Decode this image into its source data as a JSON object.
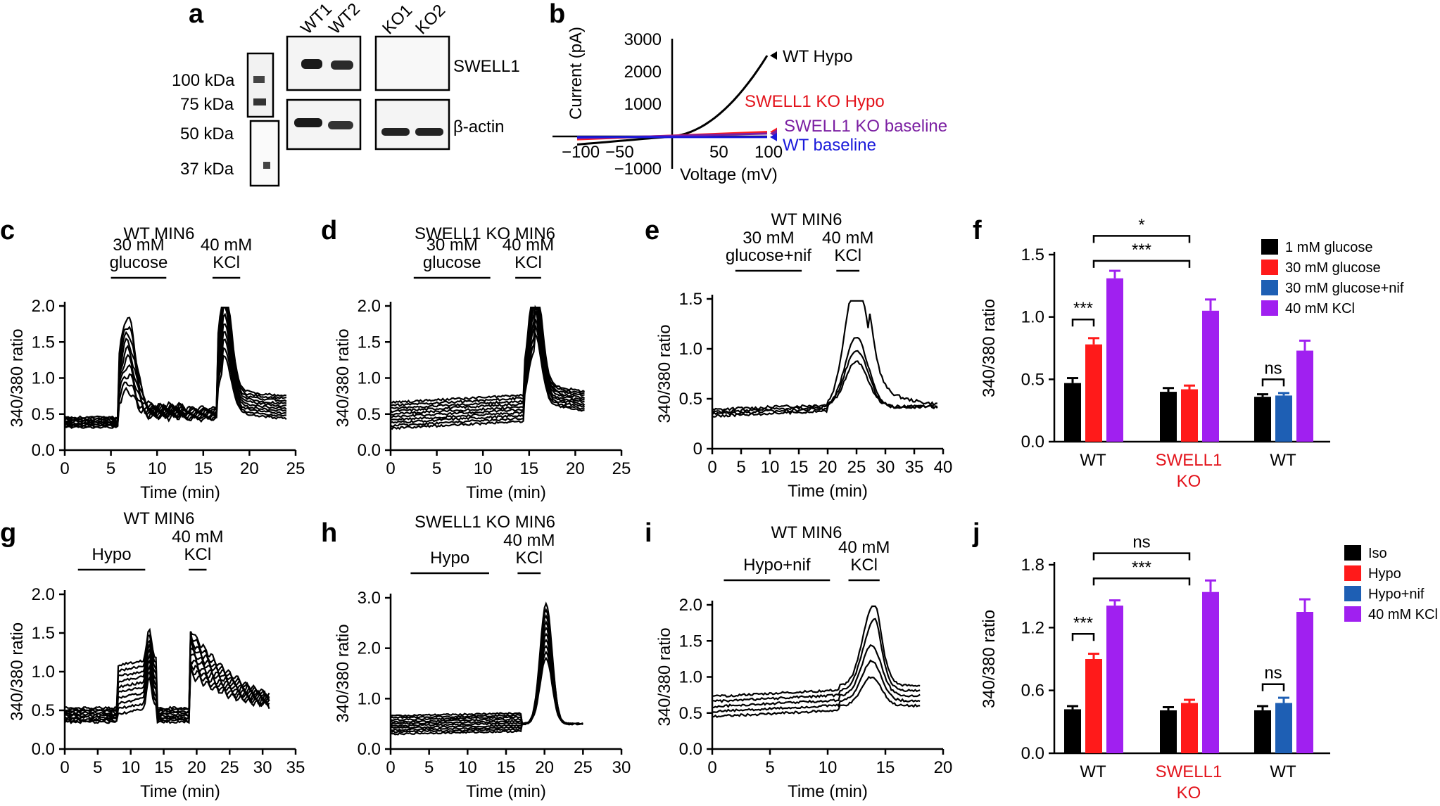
{
  "colors": {
    "black": "#000000",
    "red": "#ff1a1a",
    "purple": "#a020f0",
    "blue": "#1e5fb4",
    "wtblue": "#1a1adb",
    "wtpurple": "#7b1fa2",
    "kored": "#e3131b"
  },
  "panel_labels": [
    "a",
    "b",
    "c",
    "d",
    "e",
    "f",
    "g",
    "h",
    "i",
    "j"
  ],
  "panel_a": {
    "lanes": [
      "WT1",
      "WT2",
      "KO1",
      "KO2"
    ],
    "markers": [
      "100 kDa",
      "75 kDa",
      "50 kDa",
      "37 kDa"
    ],
    "rows": [
      "SWELL1",
      "β-actin"
    ]
  },
  "chart_data": [
    {
      "id": "b",
      "type": "line",
      "xlabel": "Voltage (mV)",
      "ylabel": "Current (pA)",
      "xlim": [
        -100,
        100
      ],
      "ylim": [
        -1000,
        3000
      ],
      "xticks": [
        "−100",
        "−50",
        "50",
        "100"
      ],
      "yticks": [
        "3000",
        "2000",
        "1000",
        "−1000"
      ],
      "series": [
        {
          "name": "WT Hypo",
          "color": "#000000",
          "x": [
            -100,
            -50,
            0,
            25,
            50,
            75,
            100
          ],
          "y": [
            -250,
            -150,
            0,
            350,
            850,
            1550,
            2500
          ]
        },
        {
          "name": "SWELL1 KO Hypo",
          "color": "#ff1a1a",
          "x": [
            -100,
            100
          ],
          "y": [
            -90,
            140
          ]
        },
        {
          "name": "SWELL1 KO baseline",
          "color": "#7b1fa2",
          "x": [
            -100,
            100
          ],
          "y": [
            -55,
            90
          ]
        },
        {
          "name": "WT baseline",
          "color": "#1a1adb",
          "x": [
            -100,
            100
          ],
          "y": [
            -20,
            -20
          ]
        }
      ]
    },
    {
      "id": "c",
      "type": "line",
      "title": "WT MIN6",
      "xlabel": "Time (min)",
      "ylabel": "340/380 ratio",
      "xlim": [
        0,
        25
      ],
      "ylim": [
        0,
        2
      ],
      "xticks": [
        "0",
        "5",
        "10",
        "15",
        "20",
        "25"
      ],
      "yticks": [
        "0.0",
        "0.5",
        "1.0",
        "1.5",
        "2.0"
      ],
      "bars": [
        {
          "label": [
            "30 mM",
            "glucose"
          ],
          "x0": 5,
          "x1": 11
        },
        {
          "label": [
            "40 mM",
            "KCl"
          ],
          "x0": 16,
          "x1": 19
        }
      ]
    },
    {
      "id": "d",
      "type": "line",
      "title": "SWELL1 KO MIN6",
      "xlabel": "Time (min)",
      "ylabel": "340/380 ratio",
      "xlim": [
        0,
        25
      ],
      "ylim": [
        0,
        2
      ],
      "xticks": [
        "0",
        "5",
        "10",
        "15",
        "20",
        "25"
      ],
      "yticks": [
        "0.0",
        "0.5",
        "1.0",
        "1.5",
        "2.0"
      ],
      "bars": [
        {
          "label": [
            "30 mM",
            "glucose"
          ],
          "x0": 2.5,
          "x1": 10.8
        },
        {
          "label": [
            "40 mM",
            "KCl"
          ],
          "x0": 13.5,
          "x1": 16.3
        }
      ]
    },
    {
      "id": "e",
      "type": "line",
      "title": "WT MIN6",
      "xlabel": "Time (min)",
      "ylabel": "340/380 ratio",
      "xlim": [
        0,
        40
      ],
      "ylim": [
        0,
        1.5
      ],
      "xticks": [
        "0",
        "5",
        "10",
        "15",
        "20",
        "25",
        "30",
        "35",
        "40"
      ],
      "yticks": [
        "0",
        "0.5",
        "1.0",
        "1.5"
      ],
      "bars": [
        {
          "label": [
            "30 mM",
            "glucose+nif"
          ],
          "x0": 4,
          "x1": 15.5
        },
        {
          "label": [
            "40 mM",
            "KCl"
          ],
          "x0": 21.5,
          "x1": 25.5
        }
      ]
    },
    {
      "id": "g",
      "type": "line",
      "title": "WT MIN6",
      "xlabel": "Time (min)",
      "ylabel": "340/380 ratio",
      "xlim": [
        0,
        35
      ],
      "ylim": [
        0,
        2
      ],
      "xticks": [
        "0",
        "5",
        "10",
        "15",
        "20",
        "25",
        "30",
        "35"
      ],
      "yticks": [
        "0.0",
        "0.5",
        "1.0",
        "1.5",
        "2.0"
      ],
      "bars": [
        {
          "label": [
            "Hypo"
          ],
          "x0": 2,
          "x1": 12.2
        },
        {
          "label": [
            "40 mM",
            "KCl"
          ],
          "x0": 18.8,
          "x1": 21.5
        }
      ]
    },
    {
      "id": "h",
      "type": "line",
      "title": "SWELL1 KO MIN6",
      "xlabel": "Time (min)",
      "ylabel": "340/380 ratio",
      "xlim": [
        0,
        30
      ],
      "ylim": [
        0,
        3
      ],
      "xticks": [
        "0",
        "5",
        "10",
        "15",
        "20",
        "25",
        "30"
      ],
      "yticks": [
        "0.0",
        "1.0",
        "2.0",
        "3.0"
      ],
      "bars": [
        {
          "label": [
            "Hypo"
          ],
          "x0": 2.6,
          "x1": 12.8
        },
        {
          "label": [
            "40 mM",
            "KCl"
          ],
          "x0": 16.5,
          "x1": 19.5
        }
      ]
    },
    {
      "id": "i",
      "type": "line",
      "title": "WT MIN6",
      "xlabel": "Time (min)",
      "ylabel": "340/380 ratio",
      "xlim": [
        0,
        20
      ],
      "ylim": [
        0,
        2
      ],
      "xticks": [
        "0",
        "5",
        "10",
        "15",
        "20"
      ],
      "yticks": [
        "0.0",
        "0.5",
        "1.0",
        "1.5",
        "2.0"
      ],
      "bars": [
        {
          "label": [
            "Hypo+nif"
          ],
          "x0": 1,
          "x1": 10.2
        },
        {
          "label": [
            "40 mM",
            "KCl"
          ],
          "x0": 11.8,
          "x1": 14.5
        }
      ]
    },
    {
      "id": "f",
      "type": "bar",
      "ylabel": "340/380 ratio",
      "ylim": [
        0,
        1.5
      ],
      "yticks": [
        "0.0",
        "0.5",
        "1.0",
        "1.5"
      ],
      "groups": [
        "WT",
        [
          "SWELL1",
          "KO"
        ],
        "WT"
      ],
      "legend": [
        {
          "name": "1 mM glucose",
          "color": "#000000"
        },
        {
          "name": "30 mM glucose",
          "color": "#ff1a1a"
        },
        {
          "name": "30 mM glucose+nif",
          "color": "#1e5fb4"
        },
        {
          "name": "40 mM KCl",
          "color": "#a020f0"
        }
      ],
      "bars": [
        {
          "group": 0,
          "series": 0,
          "value": 0.47,
          "err": 0.04
        },
        {
          "group": 0,
          "series": 1,
          "value": 0.78,
          "err": 0.05
        },
        {
          "group": 0,
          "series": 3,
          "value": 1.31,
          "err": 0.06
        },
        {
          "group": 1,
          "series": 0,
          "value": 0.4,
          "err": 0.03
        },
        {
          "group": 1,
          "series": 1,
          "value": 0.42,
          "err": 0.03
        },
        {
          "group": 1,
          "series": 3,
          "value": 1.05,
          "err": 0.09
        },
        {
          "group": 2,
          "series": 0,
          "value": 0.36,
          "err": 0.02
        },
        {
          "group": 2,
          "series": 2,
          "value": 0.37,
          "err": 0.02
        },
        {
          "group": 2,
          "series": 3,
          "value": 0.73,
          "err": 0.08
        }
      ],
      "sig": [
        {
          "label": "***",
          "a": [
            0,
            0
          ],
          "b": [
            0,
            1
          ],
          "y": 0.98
        },
        {
          "label": "ns",
          "a": [
            2,
            0
          ],
          "b": [
            2,
            2
          ],
          "y": 0.5
        },
        {
          "label": "***",
          "a": [
            0,
            2
          ],
          "b": [
            1,
            2
          ],
          "y": 1.45
        },
        {
          "label": "*",
          "a": [
            0,
            2
          ],
          "b": [
            1,
            2
          ],
          "y": 1.65
        }
      ]
    },
    {
      "id": "j",
      "type": "bar",
      "ylabel": "340/380 ratio",
      "ylim": [
        0,
        1.8
      ],
      "yticks": [
        "0.0",
        "0.6",
        "1.2",
        "1.8"
      ],
      "groups": [
        "WT",
        [
          "SWELL1",
          "KO"
        ],
        "WT"
      ],
      "legend": [
        {
          "name": "Iso",
          "color": "#000000"
        },
        {
          "name": "Hypo",
          "color": "#ff1a1a"
        },
        {
          "name": "Hypo+nif",
          "color": "#1e5fb4"
        },
        {
          "name": "40 mM KCl",
          "color": "#a020f0"
        }
      ],
      "bars": [
        {
          "group": 0,
          "series": 0,
          "value": 0.42,
          "err": 0.03
        },
        {
          "group": 0,
          "series": 1,
          "value": 0.9,
          "err": 0.05
        },
        {
          "group": 0,
          "series": 3,
          "value": 1.41,
          "err": 0.05
        },
        {
          "group": 1,
          "series": 0,
          "value": 0.41,
          "err": 0.03
        },
        {
          "group": 1,
          "series": 1,
          "value": 0.48,
          "err": 0.03
        },
        {
          "group": 1,
          "series": 3,
          "value": 1.54,
          "err": 0.11
        },
        {
          "group": 2,
          "series": 0,
          "value": 0.41,
          "err": 0.04
        },
        {
          "group": 2,
          "series": 2,
          "value": 0.48,
          "err": 0.05
        },
        {
          "group": 2,
          "series": 3,
          "value": 1.35,
          "err": 0.12
        }
      ],
      "sig": [
        {
          "label": "***",
          "a": [
            0,
            0
          ],
          "b": [
            0,
            1
          ],
          "y": 1.14
        },
        {
          "label": "ns",
          "a": [
            2,
            0
          ],
          "b": [
            2,
            2
          ],
          "y": 0.66
        },
        {
          "label": "***",
          "a": [
            0,
            2
          ],
          "b": [
            1,
            2
          ],
          "y": 1.67
        },
        {
          "label": "ns",
          "a": [
            0,
            2
          ],
          "b": [
            1,
            2
          ],
          "y": 1.91
        }
      ]
    }
  ]
}
